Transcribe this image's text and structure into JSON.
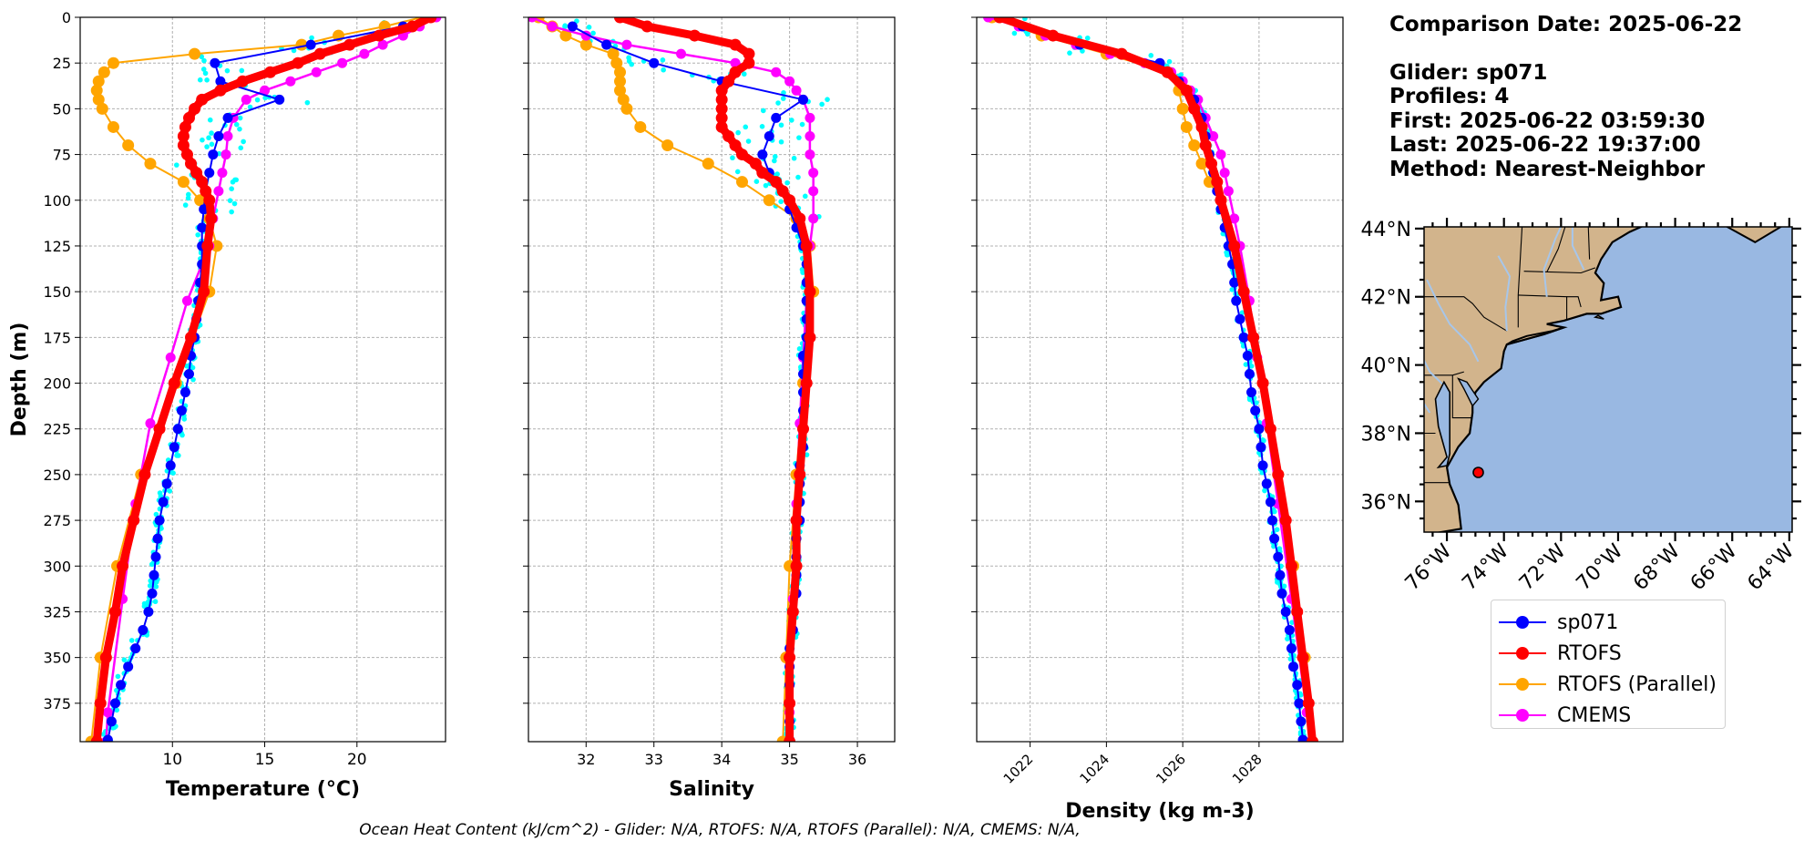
{
  "info": {
    "comparison": "Comparison Date: 2025-06-22",
    "glider": "Glider: sp071",
    "profiles": "Profiles: 4",
    "first": "First: 2025-06-22 03:59:30",
    "last": "Last: 2025-06-22 19:37:00",
    "method": "Method: Nearest-Neighbor"
  },
  "footer": "Ocean Heat Content (kJ/cm^2) - Glider: N/A,  RTOFS: N/A,  RTOFS (Parallel): N/A,  CMEMS: N/A,",
  "legend": [
    {
      "label": "sp071",
      "color": "#0000ff"
    },
    {
      "label": "RTOFS",
      "color": "#ff0000"
    },
    {
      "label": "RTOFS (Parallel)",
      "color": "#ffa500"
    },
    {
      "label": "CMEMS",
      "color": "#ff00ff"
    }
  ],
  "map": {
    "lat_labels": [
      "44°N",
      "42°N",
      "40°N",
      "38°N",
      "36°N"
    ],
    "lat_values": [
      44,
      42,
      40,
      38,
      36
    ],
    "lon_labels": [
      "76°W",
      "74°W",
      "72°W",
      "70°W",
      "68°W",
      "66°W",
      "64°W"
    ],
    "lon_values": [
      -76,
      -74,
      -72,
      -70,
      -68,
      -66,
      -64
    ],
    "lon_range": [
      -76.8,
      -63.9
    ],
    "lat_range": [
      35.1,
      44.05
    ],
    "glider_position": [
      -74.9,
      36.85
    ],
    "land_color": "#d2b48c",
    "ocean_color": "#99b8e2",
    "river_color": "#a7c6ea"
  },
  "chart_data": [
    {
      "type": "line",
      "name": "temperature",
      "xlabel": "Temperature (°C)",
      "ylabel": "Depth (m)",
      "xlim": [
        5,
        24.8
      ],
      "ylim": [
        396,
        0
      ],
      "xticks": [
        10,
        15,
        20
      ],
      "yticks": [
        0,
        25,
        50,
        75,
        100,
        125,
        150,
        175,
        200,
        225,
        250,
        275,
        300,
        325,
        350,
        375
      ],
      "grid": true,
      "series": [
        {
          "name": "sp071",
          "color": "#0000ff",
          "depth": [
            5,
            15,
            25,
            35,
            45,
            55,
            65,
            75,
            85,
            95,
            105,
            115,
            125,
            135,
            145,
            155,
            165,
            175,
            185,
            195,
            205,
            215,
            225,
            235,
            245,
            255,
            265,
            275,
            285,
            295,
            305,
            315,
            325,
            335,
            345,
            355,
            365,
            375,
            385,
            395
          ],
          "values": [
            22.5,
            17.5,
            12.3,
            12.6,
            15.8,
            13.0,
            12.5,
            12.2,
            12.0,
            11.8,
            11.7,
            11.6,
            11.6,
            11.6,
            11.5,
            11.4,
            11.3,
            11.2,
            11.0,
            10.9,
            10.7,
            10.5,
            10.3,
            10.1,
            9.9,
            9.7,
            9.5,
            9.3,
            9.2,
            9.1,
            9.0,
            8.9,
            8.7,
            8.4,
            8.0,
            7.6,
            7.2,
            6.9,
            6.7,
            6.5
          ]
        },
        {
          "name": "RTOFS",
          "color": "#ff0000",
          "depth": [
            0,
            5,
            10,
            15,
            20,
            25,
            30,
            35,
            40,
            45,
            50,
            55,
            60,
            65,
            70,
            75,
            80,
            85,
            90,
            95,
            100,
            110,
            125,
            150,
            175,
            200,
            225,
            250,
            275,
            300,
            325,
            350,
            375,
            396
          ],
          "values": [
            24.0,
            23.0,
            21.2,
            19.6,
            18.0,
            16.8,
            15.3,
            13.8,
            12.6,
            11.6,
            11.2,
            10.9,
            10.7,
            10.6,
            10.6,
            10.8,
            11.0,
            11.3,
            11.6,
            11.8,
            12.0,
            12.1,
            11.9,
            11.7,
            11.0,
            10.1,
            9.3,
            8.5,
            7.9,
            7.3,
            6.9,
            6.4,
            6.1,
            5.9
          ]
        },
        {
          "name": "RTOFS (Parallel)",
          "color": "#ffa500",
          "depth": [
            0,
            5,
            10,
            15,
            20,
            25,
            30,
            35,
            40,
            45,
            50,
            60,
            70,
            80,
            90,
            100,
            110,
            125,
            150,
            200,
            250,
            300,
            350,
            396
          ],
          "values": [
            23.5,
            21.5,
            19.0,
            17.0,
            11.2,
            6.8,
            6.3,
            6.0,
            5.9,
            6.0,
            6.2,
            6.8,
            7.6,
            8.8,
            10.6,
            11.5,
            12.0,
            12.4,
            12.0,
            10.2,
            8.3,
            7.0,
            6.1,
            5.6
          ]
        },
        {
          "name": "CMEMS",
          "color": "#ff00ff",
          "depth": [
            0,
            5,
            10,
            15,
            20,
            25,
            30,
            35,
            40,
            45,
            55,
            65,
            75,
            85,
            95,
            110,
            125,
            155,
            186,
            222,
            266,
            318,
            380,
            396
          ],
          "values": [
            24.3,
            23.4,
            22.5,
            21.4,
            20.4,
            19.2,
            17.8,
            16.4,
            15.0,
            14.0,
            13.3,
            13.0,
            12.9,
            12.7,
            12.5,
            12.2,
            12.0,
            10.8,
            9.9,
            8.8,
            8.0,
            7.3,
            6.5,
            6.4
          ]
        }
      ]
    },
    {
      "type": "line",
      "name": "salinity",
      "xlabel": "Salinity",
      "xlim": [
        31.15,
        36.55
      ],
      "ylim": [
        396,
        0
      ],
      "xticks": [
        32,
        33,
        34,
        35,
        36
      ],
      "grid": true,
      "series": [
        {
          "name": "sp071",
          "color": "#0000ff",
          "depth": [
            5,
            15,
            25,
            35,
            45,
            55,
            65,
            75,
            85,
            95,
            105,
            115,
            125,
            135,
            145,
            155,
            165,
            175,
            185,
            195,
            205,
            215,
            225,
            235,
            245,
            255,
            265,
            275,
            285,
            295,
            305,
            315,
            325,
            335,
            345,
            355,
            365,
            375,
            385,
            395
          ],
          "values": [
            31.8,
            32.3,
            33.0,
            34.0,
            35.2,
            34.8,
            34.7,
            34.6,
            34.7,
            34.9,
            35.0,
            35.1,
            35.2,
            35.25,
            35.25,
            35.25,
            35.25,
            35.25,
            35.2,
            35.2,
            35.2,
            35.2,
            35.2,
            35.2,
            35.15,
            35.15,
            35.15,
            35.15,
            35.1,
            35.1,
            35.1,
            35.1,
            35.05,
            35.05,
            35.0,
            35.0,
            35.0,
            35.0,
            35.0,
            35.0
          ]
        },
        {
          "name": "RTOFS",
          "color": "#ff0000",
          "depth": [
            0,
            5,
            10,
            15,
            20,
            25,
            30,
            35,
            40,
            45,
            50,
            55,
            60,
            65,
            70,
            75,
            80,
            85,
            90,
            95,
            100,
            110,
            125,
            150,
            175,
            200,
            225,
            250,
            275,
            300,
            325,
            350,
            375,
            396
          ],
          "values": [
            32.5,
            32.9,
            33.6,
            34.2,
            34.4,
            34.4,
            34.2,
            34.1,
            34.0,
            34.0,
            34.0,
            34.0,
            34.0,
            34.1,
            34.2,
            34.3,
            34.5,
            34.6,
            34.8,
            34.9,
            35.0,
            35.15,
            35.25,
            35.3,
            35.3,
            35.25,
            35.2,
            35.15,
            35.1,
            35.1,
            35.05,
            35.0,
            35.0,
            35.0
          ]
        },
        {
          "name": "RTOFS (Parallel)",
          "color": "#ffa500",
          "depth": [
            0,
            5,
            10,
            15,
            20,
            25,
            30,
            35,
            40,
            45,
            50,
            60,
            70,
            80,
            90,
            100,
            110,
            125,
            150,
            200,
            250,
            300,
            350,
            396
          ],
          "values": [
            31.3,
            31.5,
            31.7,
            32.0,
            32.4,
            32.45,
            32.5,
            32.5,
            32.5,
            32.55,
            32.6,
            32.8,
            33.2,
            33.8,
            34.3,
            34.7,
            35.1,
            35.3,
            35.35,
            35.2,
            35.1,
            35.0,
            34.95,
            34.9
          ]
        },
        {
          "name": "CMEMS",
          "color": "#ff00ff",
          "depth": [
            0,
            5,
            10,
            15,
            20,
            25,
            30,
            35,
            40,
            45,
            55,
            65,
            75,
            85,
            95,
            110,
            125,
            155,
            186,
            222,
            266,
            318,
            380,
            396
          ],
          "values": [
            31.2,
            31.5,
            32.0,
            32.6,
            33.4,
            34.2,
            34.8,
            35.0,
            35.1,
            35.2,
            35.3,
            35.3,
            35.3,
            35.35,
            35.35,
            35.35,
            35.3,
            35.25,
            35.2,
            35.15,
            35.1,
            35.05,
            35.0,
            35.0
          ]
        }
      ]
    },
    {
      "type": "line",
      "name": "density",
      "xlabel": "Density (kg m-3)",
      "xlim": [
        1020.6,
        1030.2
      ],
      "ylim": [
        396,
        0
      ],
      "xticks": [
        1022,
        1024,
        1026,
        1028
      ],
      "grid": true,
      "series": [
        {
          "name": "sp071",
          "color": "#0000ff",
          "depth": [
            5,
            15,
            25,
            35,
            45,
            55,
            65,
            75,
            85,
            95,
            105,
            115,
            125,
            135,
            145,
            155,
            165,
            175,
            185,
            195,
            205,
            215,
            225,
            235,
            245,
            255,
            265,
            275,
            285,
            295,
            305,
            315,
            325,
            335,
            345,
            355,
            365,
            375,
            385,
            395
          ],
          "values": [
            1021.8,
            1023.3,
            1025.4,
            1025.9,
            1026.3,
            1026.5,
            1026.6,
            1026.7,
            1026.8,
            1026.9,
            1027.0,
            1027.1,
            1027.2,
            1027.3,
            1027.35,
            1027.4,
            1027.5,
            1027.6,
            1027.7,
            1027.75,
            1027.8,
            1027.9,
            1028.0,
            1028.05,
            1028.1,
            1028.2,
            1028.3,
            1028.35,
            1028.4,
            1028.5,
            1028.55,
            1028.6,
            1028.7,
            1028.8,
            1028.85,
            1028.9,
            1029.0,
            1029.05,
            1029.1,
            1029.15
          ]
        },
        {
          "name": "RTOFS",
          "color": "#ff0000",
          "depth": [
            0,
            10,
            20,
            30,
            40,
            50,
            60,
            70,
            80,
            90,
            100,
            125,
            150,
            175,
            200,
            225,
            250,
            275,
            300,
            325,
            350,
            375,
            396
          ],
          "values": [
            1021.2,
            1022.6,
            1024.4,
            1025.6,
            1026.1,
            1026.3,
            1026.5,
            1026.6,
            1026.75,
            1026.9,
            1027.0,
            1027.35,
            1027.6,
            1027.85,
            1028.1,
            1028.3,
            1028.5,
            1028.7,
            1028.85,
            1029.0,
            1029.15,
            1029.3,
            1029.4
          ]
        },
        {
          "name": "RTOFS (Parallel)",
          "color": "#ffa500",
          "depth": [
            0,
            10,
            20,
            30,
            40,
            50,
            60,
            70,
            80,
            90,
            100,
            125,
            150,
            200,
            250,
            300,
            350,
            396
          ],
          "values": [
            1021.0,
            1022.3,
            1024.0,
            1025.6,
            1025.9,
            1026.0,
            1026.1,
            1026.3,
            1026.5,
            1026.7,
            1027.0,
            1027.3,
            1027.6,
            1028.1,
            1028.5,
            1028.9,
            1029.2,
            1029.4
          ]
        },
        {
          "name": "CMEMS",
          "color": "#ff00ff",
          "depth": [
            0,
            5,
            10,
            15,
            20,
            25,
            30,
            35,
            40,
            45,
            55,
            65,
            75,
            85,
            95,
            110,
            125,
            155,
            186,
            222,
            266,
            318,
            380,
            396
          ],
          "values": [
            1020.9,
            1021.7,
            1022.4,
            1023.2,
            1024.1,
            1025.0,
            1025.7,
            1026.0,
            1026.2,
            1026.4,
            1026.6,
            1026.8,
            1027.0,
            1027.1,
            1027.2,
            1027.35,
            1027.5,
            1027.75,
            1027.95,
            1028.2,
            1028.5,
            1028.85,
            1029.25,
            1029.35
          ]
        }
      ]
    }
  ]
}
